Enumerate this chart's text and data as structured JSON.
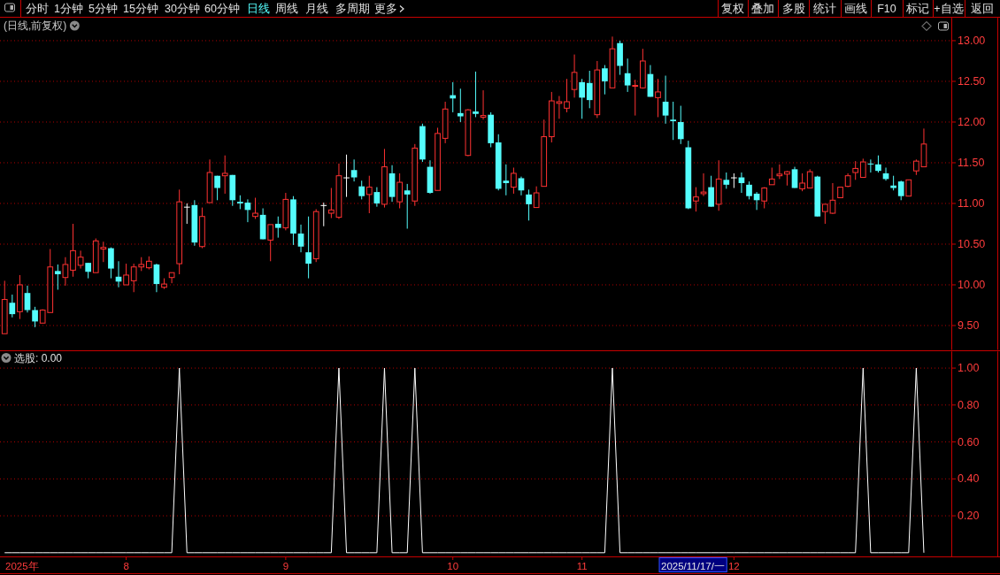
{
  "chart_data": [
    {
      "type": "other",
      "annotations": [
        "分时",
        "1分钟",
        "5分钟",
        "15分钟",
        "30分钟",
        "60分钟",
        "日线",
        "周线",
        "月线",
        "多周期",
        "更多",
        "复权",
        "叠加",
        "多股",
        "统计",
        "画线",
        "F10",
        "标记",
        "+自选",
        "返回"
      ],
      "colors": [
        "#e0e0e0",
        "#e0e0e0",
        "#e0e0e0",
        "#e0e0e0",
        "#e0e0e0",
        "#e0e0e0",
        "#54fcfc",
        "#e0e0e0",
        "#e0e0e0",
        "#e0e0e0",
        "#e0e0e0",
        "#e0e0e0",
        "#e0e0e0",
        "#e0e0e0",
        "#e0e0e0",
        "#e0e0e0",
        "#e0e0e0",
        "#e0e0e0",
        "#e0e0e0",
        "#e0e0e0"
      ]
    },
    {
      "type": "candlestick",
      "title": "(日线,前复权)",
      "categories": [
        null,
        null,
        null,
        null,
        null,
        null,
        null,
        null,
        null,
        null,
        null,
        null,
        null,
        null,
        null,
        null,
        "8",
        null,
        null,
        null,
        null,
        null,
        null,
        null,
        null,
        null,
        null,
        null,
        null,
        null,
        null,
        null,
        null,
        null,
        null,
        null,
        null,
        "9",
        null,
        null,
        null,
        null,
        null,
        null,
        null,
        null,
        null,
        null,
        null,
        null,
        null,
        null,
        null,
        null,
        null,
        null,
        null,
        null,
        null,
        "10",
        null,
        null,
        null,
        null,
        null,
        null,
        null,
        null,
        null,
        null,
        null,
        null,
        null,
        null,
        null,
        null,
        "11",
        null,
        null,
        null,
        null,
        null,
        null,
        null,
        null,
        null,
        null,
        null,
        null,
        null,
        null,
        null,
        null,
        null,
        null,
        null,
        "12",
        null,
        null,
        null,
        null,
        null,
        null,
        null,
        null,
        null,
        null,
        null,
        null,
        null,
        null,
        null,
        null,
        null,
        null,
        null,
        null,
        null,
        null,
        null,
        null,
        null
      ],
      "ohlc": [
        [
          9.4,
          10.05,
          9.4,
          9.82
        ],
        [
          9.78,
          9.88,
          9.6,
          9.64
        ],
        [
          9.67,
          10.12,
          9.58,
          10.0
        ],
        [
          9.9,
          9.99,
          9.66,
          9.69
        ],
        [
          9.69,
          9.73,
          9.48,
          9.55
        ],
        [
          9.53,
          9.7,
          9.53,
          9.69
        ],
        [
          9.66,
          10.44,
          9.66,
          10.22
        ],
        [
          10.17,
          10.25,
          9.94,
          10.13
        ],
        [
          10.09,
          10.34,
          9.99,
          10.25
        ],
        [
          10.18,
          10.75,
          10.1,
          10.42
        ],
        [
          10.24,
          10.42,
          10.2,
          10.34
        ],
        [
          10.27,
          10.27,
          10.08,
          10.16
        ],
        [
          10.15,
          10.57,
          10.15,
          10.54
        ],
        [
          10.44,
          10.53,
          10.28,
          10.46
        ],
        [
          10.45,
          10.46,
          10.08,
          10.2
        ],
        [
          10.1,
          10.29,
          9.97,
          10.04
        ],
        [
          10.0,
          10.26,
          10.0,
          10.12
        ],
        [
          10.05,
          10.26,
          9.91,
          10.22
        ],
        [
          10.22,
          10.34,
          10.17,
          10.25
        ],
        [
          10.21,
          10.35,
          10.19,
          10.29
        ],
        [
          10.25,
          10.26,
          9.91,
          10.01
        ],
        [
          9.97,
          10.08,
          9.95,
          10.01
        ],
        [
          10.09,
          10.15,
          10.02,
          10.15
        ],
        [
          10.26,
          11.17,
          10.13,
          11.02
        ],
        [
          10.96,
          11.0,
          10.75,
          10.96
        ],
        [
          10.98,
          11.04,
          10.48,
          10.52
        ],
        [
          10.47,
          10.95,
          10.45,
          10.84
        ],
        [
          11.01,
          11.54,
          11.01,
          11.38
        ],
        [
          11.34,
          11.34,
          11.04,
          11.19
        ],
        [
          11.34,
          11.59,
          11.12,
          11.37
        ],
        [
          11.35,
          11.35,
          10.97,
          11.04
        ],
        [
          11.02,
          11.1,
          10.93,
          11.0
        ],
        [
          11.01,
          11.05,
          10.77,
          10.92
        ],
        [
          10.84,
          11.07,
          10.81,
          10.88
        ],
        [
          10.86,
          10.94,
          10.56,
          10.56
        ],
        [
          10.55,
          10.74,
          10.29,
          10.74
        ],
        [
          10.75,
          10.84,
          10.58,
          10.7
        ],
        [
          10.7,
          11.13,
          10.67,
          11.05
        ],
        [
          11.05,
          11.09,
          10.49,
          10.63
        ],
        [
          10.63,
          10.74,
          10.4,
          10.47
        ],
        [
          10.4,
          10.84,
          10.08,
          10.26
        ],
        [
          10.32,
          10.93,
          10.28,
          10.9
        ],
        [
          10.98,
          11.01,
          10.72,
          10.98
        ],
        [
          10.88,
          11.19,
          10.82,
          10.92
        ],
        [
          10.83,
          11.49,
          10.81,
          11.34
        ],
        [
          11.32,
          11.6,
          11.08,
          11.32
        ],
        [
          11.41,
          11.54,
          11.27,
          11.32
        ],
        [
          11.21,
          11.28,
          11.05,
          11.09
        ],
        [
          11.11,
          11.34,
          10.88,
          11.2
        ],
        [
          11.14,
          11.2,
          10.96,
          11.0
        ],
        [
          10.99,
          11.67,
          10.95,
          11.45
        ],
        [
          11.37,
          11.47,
          11.02,
          11.08
        ],
        [
          11.02,
          11.37,
          10.94,
          11.26
        ],
        [
          11.16,
          11.24,
          10.69,
          11.11
        ],
        [
          11.03,
          11.73,
          10.97,
          11.68
        ],
        [
          11.95,
          11.98,
          11.51,
          11.54
        ],
        [
          11.45,
          11.53,
          11.12,
          11.13
        ],
        [
          11.16,
          11.93,
          11.16,
          11.86
        ],
        [
          11.8,
          12.25,
          11.74,
          12.16
        ],
        [
          12.33,
          12.49,
          12.12,
          12.29
        ],
        [
          12.11,
          12.41,
          12.0,
          12.07
        ],
        [
          11.59,
          12.16,
          11.58,
          12.15
        ],
        [
          12.13,
          12.62,
          12.06,
          12.1
        ],
        [
          12.06,
          12.39,
          12.03,
          12.08
        ],
        [
          12.09,
          12.12,
          11.69,
          11.74
        ],
        [
          11.75,
          11.85,
          11.16,
          11.18
        ],
        [
          11.28,
          11.48,
          11.1,
          11.25
        ],
        [
          11.2,
          11.44,
          11.12,
          11.37
        ],
        [
          11.31,
          11.33,
          11.1,
          11.16
        ],
        [
          11.11,
          11.17,
          10.79,
          10.99
        ],
        [
          10.95,
          11.21,
          10.95,
          11.13
        ],
        [
          11.21,
          12.03,
          11.21,
          11.82
        ],
        [
          11.82,
          12.37,
          11.75,
          12.26
        ],
        [
          12.23,
          12.32,
          12.04,
          12.25
        ],
        [
          12.17,
          12.53,
          12.12,
          12.25
        ],
        [
          12.4,
          12.83,
          12.3,
          12.61
        ],
        [
          12.49,
          12.53,
          12.04,
          12.3
        ],
        [
          12.48,
          12.63,
          12.17,
          12.27
        ],
        [
          12.09,
          12.75,
          12.05,
          12.64
        ],
        [
          12.66,
          12.7,
          12.34,
          12.5
        ],
        [
          12.42,
          13.05,
          12.42,
          12.9
        ],
        [
          12.97,
          13.0,
          12.58,
          12.69
        ],
        [
          12.6,
          12.78,
          12.37,
          12.45
        ],
        [
          12.44,
          12.52,
          12.08,
          12.45
        ],
        [
          12.42,
          12.9,
          12.41,
          12.75
        ],
        [
          12.59,
          12.7,
          12.31,
          12.31
        ],
        [
          12.3,
          12.53,
          12.06,
          12.37
        ],
        [
          12.25,
          12.57,
          11.98,
          12.08
        ],
        [
          12.03,
          12.25,
          11.78,
          12.01
        ],
        [
          12.0,
          12.2,
          11.73,
          11.79
        ],
        [
          11.69,
          11.77,
          10.93,
          10.94
        ],
        [
          11.03,
          11.2,
          10.9,
          11.08
        ],
        [
          11.12,
          11.37,
          11.09,
          11.14
        ],
        [
          11.2,
          11.34,
          10.96,
          10.96
        ],
        [
          10.99,
          11.53,
          10.91,
          11.3
        ],
        [
          11.29,
          11.38,
          11.18,
          11.23
        ],
        [
          11.32,
          11.37,
          11.19,
          11.32
        ],
        [
          11.32,
          11.38,
          11.13,
          11.25
        ],
        [
          11.23,
          11.27,
          11.05,
          11.09
        ],
        [
          11.12,
          11.14,
          10.92,
          11.04
        ],
        [
          11.03,
          11.2,
          10.94,
          11.19
        ],
        [
          11.23,
          11.44,
          11.23,
          11.3
        ],
        [
          11.34,
          11.48,
          11.3,
          11.36
        ],
        [
          11.36,
          11.4,
          11.22,
          11.39
        ],
        [
          11.42,
          11.45,
          11.19,
          11.19
        ],
        [
          11.18,
          11.37,
          11.15,
          11.25
        ],
        [
          11.19,
          11.42,
          11.19,
          11.39
        ],
        [
          11.33,
          11.34,
          10.84,
          10.84
        ],
        [
          10.9,
          10.99,
          10.75,
          10.99
        ],
        [
          10.88,
          11.25,
          10.87,
          11.04
        ],
        [
          11.07,
          11.2,
          11.07,
          11.2
        ],
        [
          11.21,
          11.37,
          11.2,
          11.34
        ],
        [
          11.38,
          11.52,
          11.29,
          11.43
        ],
        [
          11.32,
          11.55,
          11.32,
          11.51
        ],
        [
          11.49,
          11.54,
          11.38,
          11.48
        ],
        [
          11.48,
          11.59,
          11.38,
          11.4
        ],
        [
          11.37,
          11.44,
          11.28,
          11.3
        ],
        [
          11.22,
          11.34,
          11.16,
          11.19
        ],
        [
          11.27,
          11.28,
          11.04,
          11.09
        ],
        [
          11.09,
          11.29,
          11.09,
          11.29
        ],
        [
          11.4,
          11.54,
          11.35,
          11.52
        ],
        [
          11.45,
          11.92,
          11.45,
          11.73
        ]
      ],
      "colors": [
        "#ff3232",
        "#54fcfc",
        "#ff3232",
        "#54fcfc",
        "#54fcfc",
        "#ff3232",
        "#ff3232",
        "#54fcfc",
        "#ff3232",
        "#ff3232",
        "#ff3232",
        "#54fcfc",
        "#ff3232",
        "#ff3232",
        "#54fcfc",
        "#54fcfc",
        "#ff3232",
        "#ff3232",
        "#ff3232",
        "#ff3232",
        "#54fcfc",
        "#ff3232",
        "#ff3232",
        "#ff3232",
        "#ffffff",
        "#54fcfc",
        "#ff3232",
        "#ff3232",
        "#54fcfc",
        "#ff3232",
        "#54fcfc",
        "#54fcfc",
        "#54fcfc",
        "#ff3232",
        "#54fcfc",
        "#ff3232",
        "#54fcfc",
        "#ff3232",
        "#54fcfc",
        "#54fcfc",
        "#54fcfc",
        "#ff3232",
        "#ffffff",
        "#ff3232",
        "#ff3232",
        "#ffffff",
        "#54fcfc",
        "#54fcfc",
        "#ff3232",
        "#54fcfc",
        "#ff3232",
        "#54fcfc",
        "#ff3232",
        "#54fcfc",
        "#ff3232",
        "#54fcfc",
        "#54fcfc",
        "#ff3232",
        "#ff3232",
        "#54fcfc",
        "#54fcfc",
        "#ff3232",
        "#54fcfc",
        "#ff3232",
        "#54fcfc",
        "#54fcfc",
        "#54fcfc",
        "#ff3232",
        "#54fcfc",
        "#54fcfc",
        "#ff3232",
        "#ff3232",
        "#ff3232",
        "#ff3232",
        "#ff3232",
        "#ff3232",
        "#54fcfc",
        "#54fcfc",
        "#ff3232",
        "#54fcfc",
        "#ff3232",
        "#54fcfc",
        "#54fcfc",
        "#ff3232",
        "#ff3232",
        "#54fcfc",
        "#ff3232",
        "#54fcfc",
        "#54fcfc",
        "#54fcfc",
        "#54fcfc",
        "#ff3232",
        "#ff3232",
        "#54fcfc",
        "#ff3232",
        "#54fcfc",
        "#ffffff",
        "#54fcfc",
        "#54fcfc",
        "#54fcfc",
        "#ff3232",
        "#ff3232",
        "#ff3232",
        "#ff3232",
        "#54fcfc",
        "#ff3232",
        "#ff3232",
        "#54fcfc",
        "#ff3232",
        "#ff3232",
        "#ff3232",
        "#ff3232",
        "#ff3232",
        "#ff3232",
        "#54fcfc",
        "#54fcfc",
        "#54fcfc",
        "#54fcfc",
        "#54fcfc",
        "#ff3232",
        "#ff3232",
        "#ff3232"
      ],
      "ylim": [
        9.2,
        13.28
      ],
      "yticks": [
        {
          "value": 9.5,
          "label": "9.50"
        },
        {
          "value": 10,
          "label": "10.00"
        },
        {
          "value": 10.5,
          "label": "10.50"
        },
        {
          "value": 11,
          "label": "11.00"
        },
        {
          "value": 11.5,
          "label": "11.50"
        },
        {
          "value": 12,
          "label": "12.00"
        },
        {
          "value": 12.5,
          "label": "12.50"
        },
        {
          "value": 13,
          "label": "13.00"
        }
      ],
      "grid": "y",
      "tick_labels": "y"
    },
    {
      "type": "line",
      "title": "选股: 0.00",
      "categories": [
        null,
        null,
        null,
        null,
        null,
        null,
        null,
        null,
        null,
        null,
        null,
        null,
        null,
        null,
        null,
        null,
        "8",
        null,
        null,
        null,
        null,
        null,
        null,
        null,
        null,
        null,
        null,
        null,
        null,
        null,
        null,
        null,
        null,
        null,
        null,
        null,
        null,
        "9",
        null,
        null,
        null,
        null,
        null,
        null,
        null,
        null,
        null,
        null,
        null,
        null,
        null,
        null,
        null,
        null,
        null,
        null,
        null,
        null,
        null,
        "10",
        null,
        null,
        null,
        null,
        null,
        null,
        null,
        null,
        null,
        null,
        null,
        null,
        null,
        null,
        null,
        null,
        "11",
        null,
        null,
        null,
        null,
        null,
        null,
        null,
        null,
        null,
        null,
        null,
        null,
        null,
        null,
        null,
        null,
        null,
        null,
        null,
        "12",
        null,
        null,
        null,
        null,
        null,
        null,
        null,
        null,
        null,
        null,
        null,
        null,
        null,
        null,
        null,
        null,
        null,
        null,
        null,
        null,
        null,
        null,
        null,
        null,
        null
      ],
      "series": [
        {
          "color": "#ffffff",
          "values": [
            0,
            0,
            0,
            0,
            0,
            0,
            0,
            0,
            0,
            0,
            0,
            0,
            0,
            0,
            0,
            0,
            0,
            0,
            0,
            0,
            0,
            0,
            0,
            1,
            0,
            0,
            0,
            0,
            0,
            0,
            0,
            0,
            0,
            0,
            0,
            0,
            0,
            0,
            0,
            0,
            0,
            0,
            0,
            0,
            1,
            0,
            0,
            0,
            0,
            0,
            1,
            0,
            0,
            0,
            1,
            0,
            0,
            0,
            0,
            0,
            0,
            0,
            0,
            0,
            0,
            0,
            0,
            0,
            0,
            0,
            0,
            0,
            0,
            0,
            0,
            0,
            0,
            0,
            0,
            0,
            1,
            0,
            0,
            0,
            0,
            0,
            0,
            0,
            0,
            0,
            0,
            0,
            0,
            0,
            0,
            0,
            0,
            0,
            0,
            0,
            0,
            0,
            0,
            0,
            0,
            0,
            0,
            0,
            0,
            0,
            0,
            0,
            0,
            1,
            0,
            0,
            0,
            0,
            0,
            0,
            1,
            0
          ]
        }
      ],
      "ylim": [
        -0.02,
        1.09
      ],
      "yticks": [
        {
          "value": 0.2,
          "label": "0.20"
        },
        {
          "value": 0.4,
          "label": "0.40"
        },
        {
          "value": 0.6,
          "label": "0.60"
        },
        {
          "value": 0.8,
          "label": "0.80"
        },
        {
          "value": 1,
          "label": "1.00"
        }
      ],
      "grid": "y",
      "annotations": [
        "2025年",
        "2025/11/17/一"
      ]
    }
  ]
}
